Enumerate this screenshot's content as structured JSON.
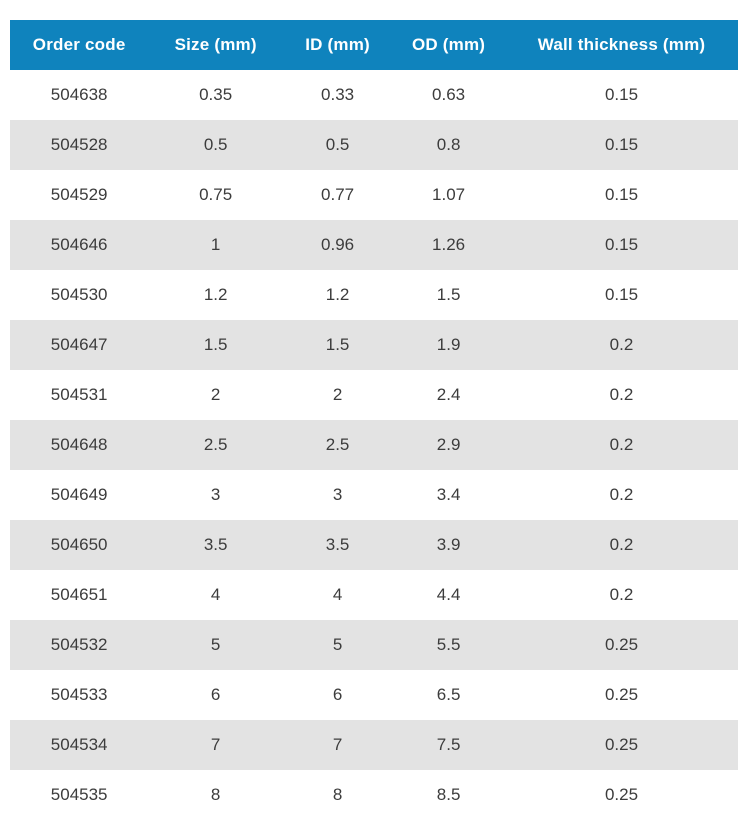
{
  "table": {
    "columns": [
      "Order code",
      "Size (mm)",
      "ID (mm)",
      "OD (mm)",
      "Wall thickness (mm)"
    ],
    "rows": [
      [
        "504638",
        "0.35",
        "0.33",
        "0.63",
        "0.15"
      ],
      [
        "504528",
        "0.5",
        "0.5",
        "0.8",
        "0.15"
      ],
      [
        "504529",
        "0.75",
        "0.77",
        "1.07",
        "0.15"
      ],
      [
        "504646",
        "1",
        "0.96",
        "1.26",
        "0.15"
      ],
      [
        "504530",
        "1.2",
        "1.2",
        "1.5",
        "0.15"
      ],
      [
        "504647",
        "1.5",
        "1.5",
        "1.9",
        "0.2"
      ],
      [
        "504531",
        "2",
        "2",
        "2.4",
        "0.2"
      ],
      [
        "504648",
        "2.5",
        "2.5",
        "2.9",
        "0.2"
      ],
      [
        "504649",
        "3",
        "3",
        "3.4",
        "0.2"
      ],
      [
        "504650",
        "3.5",
        "3.5",
        "3.9",
        "0.2"
      ],
      [
        "504651",
        "4",
        "4",
        "4.4",
        "0.2"
      ],
      [
        "504532",
        "5",
        "5",
        "5.5",
        "0.25"
      ],
      [
        "504533",
        "6",
        "6",
        "6.5",
        "0.25"
      ],
      [
        "504534",
        "7",
        "7",
        "7.5",
        "0.25"
      ],
      [
        "504535",
        "8",
        "8",
        "8.5",
        "0.25"
      ]
    ],
    "colors": {
      "header_bg": "#0f83bd",
      "header_text": "#ffffff",
      "row_bg": "#ffffff",
      "row_alt_bg": "#e3e3e3",
      "cell_text": "#3c3c3c"
    }
  }
}
